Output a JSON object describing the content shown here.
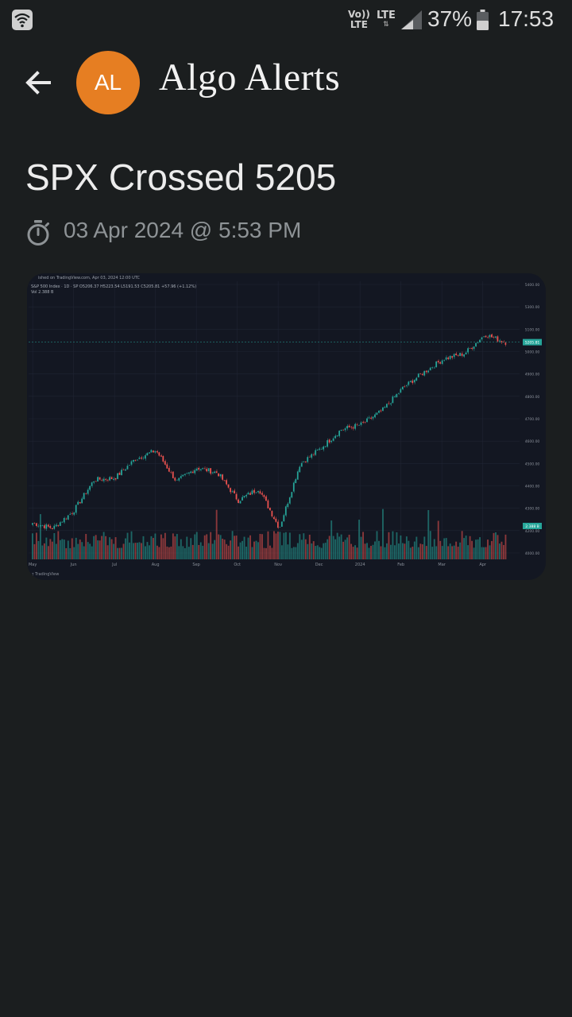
{
  "status_bar": {
    "network_volte": "Vo))\nLTE",
    "network_lte": "LTE",
    "battery_percent": "37%",
    "time": "17:53"
  },
  "header": {
    "avatar_initials": "AL",
    "avatar_color": "#e67e22",
    "title": "Algo Alerts"
  },
  "alert": {
    "title": "SPX Crossed 5205",
    "timestamp": "03 Apr 2024 @ 5:53 PM"
  },
  "chart_image": {
    "header_text": "ished on TradingView.com, Apr 03, 2024 12:00 UTC",
    "legend_text": "S&P 500 Index · 1D · SP  O5206.37  H5223.54  L5191.53  C5205.81  +57.96 (+1.12%)",
    "volume_text": "Vol  2.388 B",
    "footer_text": "TradingView",
    "last_price_label": "5205.81",
    "volume_label": "2.388 B"
  },
  "chart_data": {
    "type": "candlestick",
    "title": "S&P 500 Index · 1D · SP",
    "x_tick_labels": [
      "May",
      "Jun",
      "Jul",
      "Aug",
      "Sep",
      "Oct",
      "Nov",
      "Dec",
      "2024",
      "Feb",
      "Mar",
      "Apr"
    ],
    "y_tick_labels": [
      "5400.00",
      "5300.00",
      "5100.00",
      "5000.00",
      "4900.00",
      "4800.00",
      "4700.00",
      "4600.00",
      "4500.00",
      "4400.00",
      "4300.00",
      "4200.00",
      "4000.00"
    ],
    "ylim": [
      3950,
      5420
    ],
    "last_price": 5205.81,
    "volume_last": "2.388 B",
    "up_color": "#26a69a",
    "down_color": "#ef5350",
    "close_series": {
      "dates": [
        "2023-05-01",
        "2023-05-15",
        "2023-06-01",
        "2023-06-15",
        "2023-07-01",
        "2023-07-15",
        "2023-08-01",
        "2023-08-15",
        "2023-09-01",
        "2023-09-15",
        "2023-10-01",
        "2023-10-15",
        "2023-10-27",
        "2023-11-15",
        "2023-12-01",
        "2023-12-15",
        "2024-01-01",
        "2024-01-15",
        "2024-02-01",
        "2024-02-15",
        "2024-03-01",
        "2024-03-15",
        "2024-03-28",
        "2024-04-03"
      ],
      "values": [
        4160,
        4130,
        4230,
        4410,
        4420,
        4530,
        4580,
        4400,
        4480,
        4450,
        4290,
        4360,
        4130,
        4500,
        4590,
        4700,
        4730,
        4810,
        4940,
        5030,
        5110,
        5140,
        5250,
        5205
      ]
    }
  }
}
